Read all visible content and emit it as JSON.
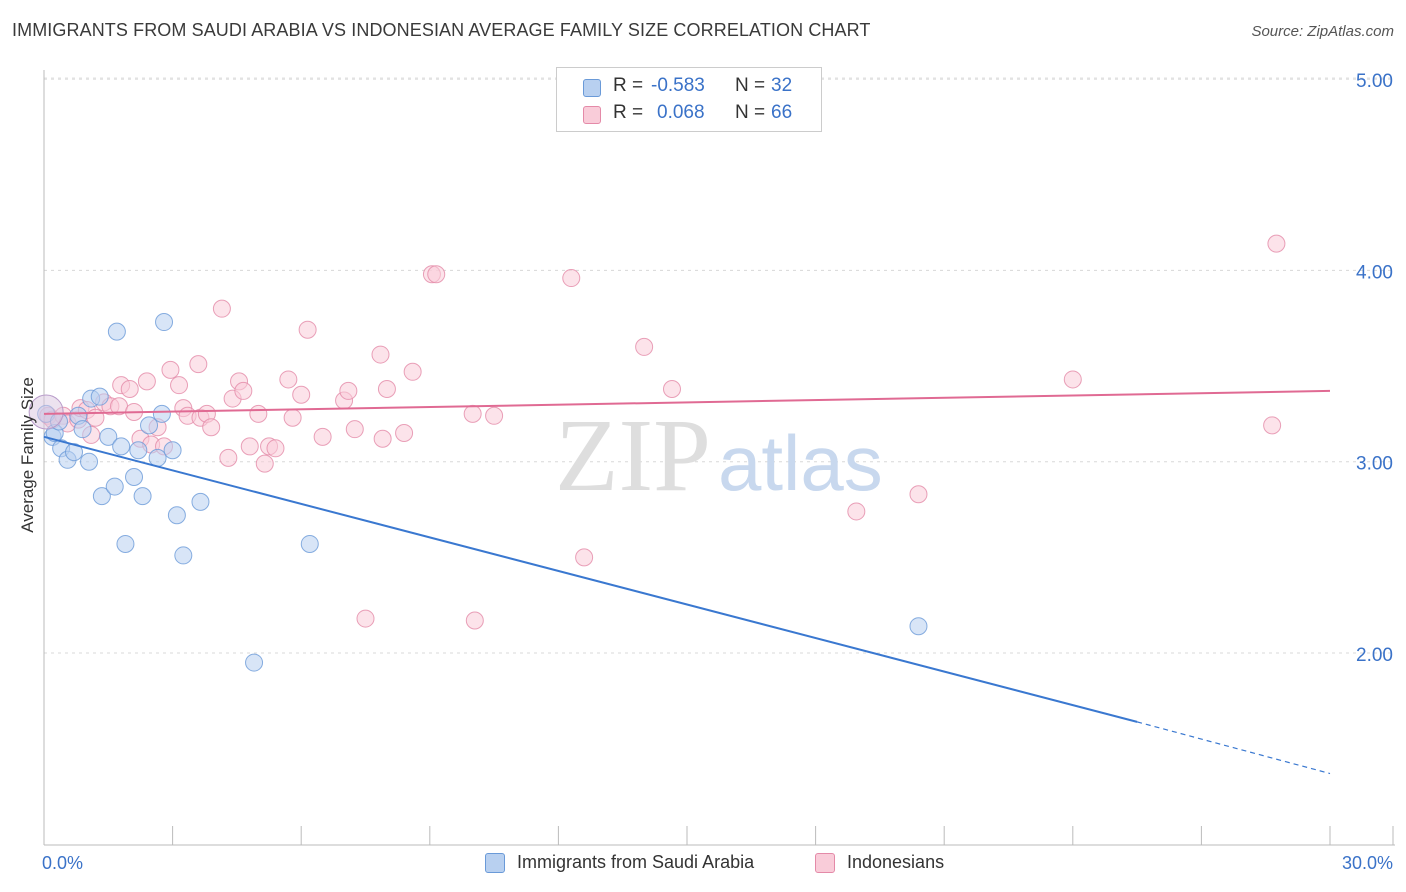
{
  "header": {
    "title": "IMMIGRANTS FROM SAUDI ARABIA VS INDONESIAN AVERAGE FAMILY SIZE CORRELATION CHART",
    "source": "Source: ZipAtlas.com"
  },
  "watermark": {
    "zip": "ZIP",
    "atlas": "atlas"
  },
  "stats_box": {
    "rows": [
      {
        "r_label": "R =",
        "r_value": "-0.583",
        "n_label": "N =",
        "n_value": "32",
        "color": "#6a9ad8"
      },
      {
        "r_label": "R =",
        "r_value": "0.068",
        "n_label": "N =",
        "n_value": "66",
        "color": "#e48aa8"
      }
    ]
  },
  "legend": {
    "items": [
      {
        "label": "Immigrants from Saudi Arabia",
        "color": "#b8d0f0"
      },
      {
        "label": "Indonesians",
        "color": "#f9ccd9"
      }
    ]
  },
  "chart_data": {
    "type": "scatter",
    "title": "IMMIGRANTS FROM SAUDI ARABIA VS INDONESIAN AVERAGE FAMILY SIZE CORRELATION CHART",
    "xlabel": "",
    "ylabel": "Average Family Size",
    "xlim": [
      0,
      30
    ],
    "ylim": [
      1.0,
      5.2
    ],
    "x_tick_labels": [
      {
        "value": 0,
        "label": "0.0%"
      },
      {
        "value": 30,
        "label": "30.0%"
      }
    ],
    "y_ticks": [
      {
        "value": 2.0,
        "label": "2.00"
      },
      {
        "value": 3.0,
        "label": "3.00"
      },
      {
        "value": 4.0,
        "label": "4.00"
      },
      {
        "value": 5.0,
        "label": "5.00"
      }
    ],
    "grid": "horizontal dashed",
    "series": [
      {
        "name": "Immigrants from Saudi Arabia",
        "color": "#6a9ad8",
        "fill": "#b8d0f0",
        "points": [
          [
            0.05,
            3.25
          ],
          [
            0.2,
            3.13
          ],
          [
            0.25,
            3.15
          ],
          [
            0.35,
            3.21
          ],
          [
            0.4,
            3.07
          ],
          [
            0.55,
            3.01
          ],
          [
            0.7,
            3.05
          ],
          [
            0.8,
            3.24
          ],
          [
            0.9,
            3.17
          ],
          [
            1.05,
            3.0
          ],
          [
            1.1,
            3.33
          ],
          [
            1.3,
            3.34
          ],
          [
            1.35,
            2.82
          ],
          [
            1.5,
            3.13
          ],
          [
            1.65,
            2.87
          ],
          [
            1.7,
            3.68
          ],
          [
            1.8,
            3.08
          ],
          [
            1.9,
            2.57
          ],
          [
            2.1,
            2.92
          ],
          [
            2.2,
            3.06
          ],
          [
            2.3,
            2.82
          ],
          [
            2.45,
            3.19
          ],
          [
            2.65,
            3.02
          ],
          [
            2.75,
            3.25
          ],
          [
            2.8,
            3.73
          ],
          [
            3.0,
            3.06
          ],
          [
            3.1,
            2.72
          ],
          [
            3.25,
            2.51
          ],
          [
            3.65,
            2.79
          ],
          [
            4.9,
            1.95
          ],
          [
            6.2,
            2.57
          ],
          [
            20.4,
            2.14
          ]
        ],
        "trend": {
          "x0": 0,
          "y0": 3.13,
          "x1": 25.5,
          "y1": 1.64,
          "dashed_to_x": 30,
          "dashed_to_y": 1.37
        }
      },
      {
        "name": "Indonesians",
        "color": "#e48aa8",
        "fill": "#f9ccd9",
        "points": [
          [
            0.1,
            3.24
          ],
          [
            0.2,
            3.22
          ],
          [
            0.45,
            3.24
          ],
          [
            0.55,
            3.2
          ],
          [
            0.8,
            3.22
          ],
          [
            0.85,
            3.28
          ],
          [
            1.0,
            3.27
          ],
          [
            1.1,
            3.14
          ],
          [
            1.2,
            3.23
          ],
          [
            1.4,
            3.31
          ],
          [
            1.55,
            3.29
          ],
          [
            1.75,
            3.29
          ],
          [
            1.8,
            3.4
          ],
          [
            2.0,
            3.38
          ],
          [
            2.1,
            3.26
          ],
          [
            2.25,
            3.12
          ],
          [
            2.4,
            3.42
          ],
          [
            2.5,
            3.09
          ],
          [
            2.65,
            3.18
          ],
          [
            2.8,
            3.08
          ],
          [
            2.95,
            3.48
          ],
          [
            3.15,
            3.4
          ],
          [
            3.25,
            3.28
          ],
          [
            3.35,
            3.24
          ],
          [
            3.6,
            3.51
          ],
          [
            3.65,
            3.23
          ],
          [
            3.8,
            3.25
          ],
          [
            3.9,
            3.18
          ],
          [
            4.15,
            3.8
          ],
          [
            4.3,
            3.02
          ],
          [
            4.4,
            3.33
          ],
          [
            4.55,
            3.42
          ],
          [
            4.65,
            3.37
          ],
          [
            4.8,
            3.08
          ],
          [
            5.0,
            3.25
          ],
          [
            5.15,
            2.99
          ],
          [
            5.25,
            3.08
          ],
          [
            5.4,
            3.07
          ],
          [
            5.7,
            3.43
          ],
          [
            5.8,
            3.23
          ],
          [
            6.0,
            3.35
          ],
          [
            6.15,
            3.69
          ],
          [
            6.5,
            3.13
          ],
          [
            7.0,
            3.32
          ],
          [
            7.1,
            3.37
          ],
          [
            7.25,
            3.17
          ],
          [
            7.5,
            2.18
          ],
          [
            7.85,
            3.56
          ],
          [
            7.9,
            3.12
          ],
          [
            8.0,
            3.38
          ],
          [
            8.4,
            3.15
          ],
          [
            8.6,
            3.47
          ],
          [
            9.05,
            3.98
          ],
          [
            9.15,
            3.98
          ],
          [
            10.0,
            3.25
          ],
          [
            10.05,
            2.17
          ],
          [
            10.5,
            3.24
          ],
          [
            12.3,
            3.96
          ],
          [
            12.6,
            2.5
          ],
          [
            14.0,
            3.6
          ],
          [
            14.65,
            3.38
          ],
          [
            18.95,
            2.74
          ],
          [
            20.4,
            2.83
          ],
          [
            24.0,
            3.43
          ],
          [
            28.65,
            3.19
          ],
          [
            28.75,
            4.14
          ]
        ],
        "trend": {
          "x0": 0,
          "y0": 3.25,
          "x1": 30,
          "y1": 3.37
        }
      }
    ]
  }
}
